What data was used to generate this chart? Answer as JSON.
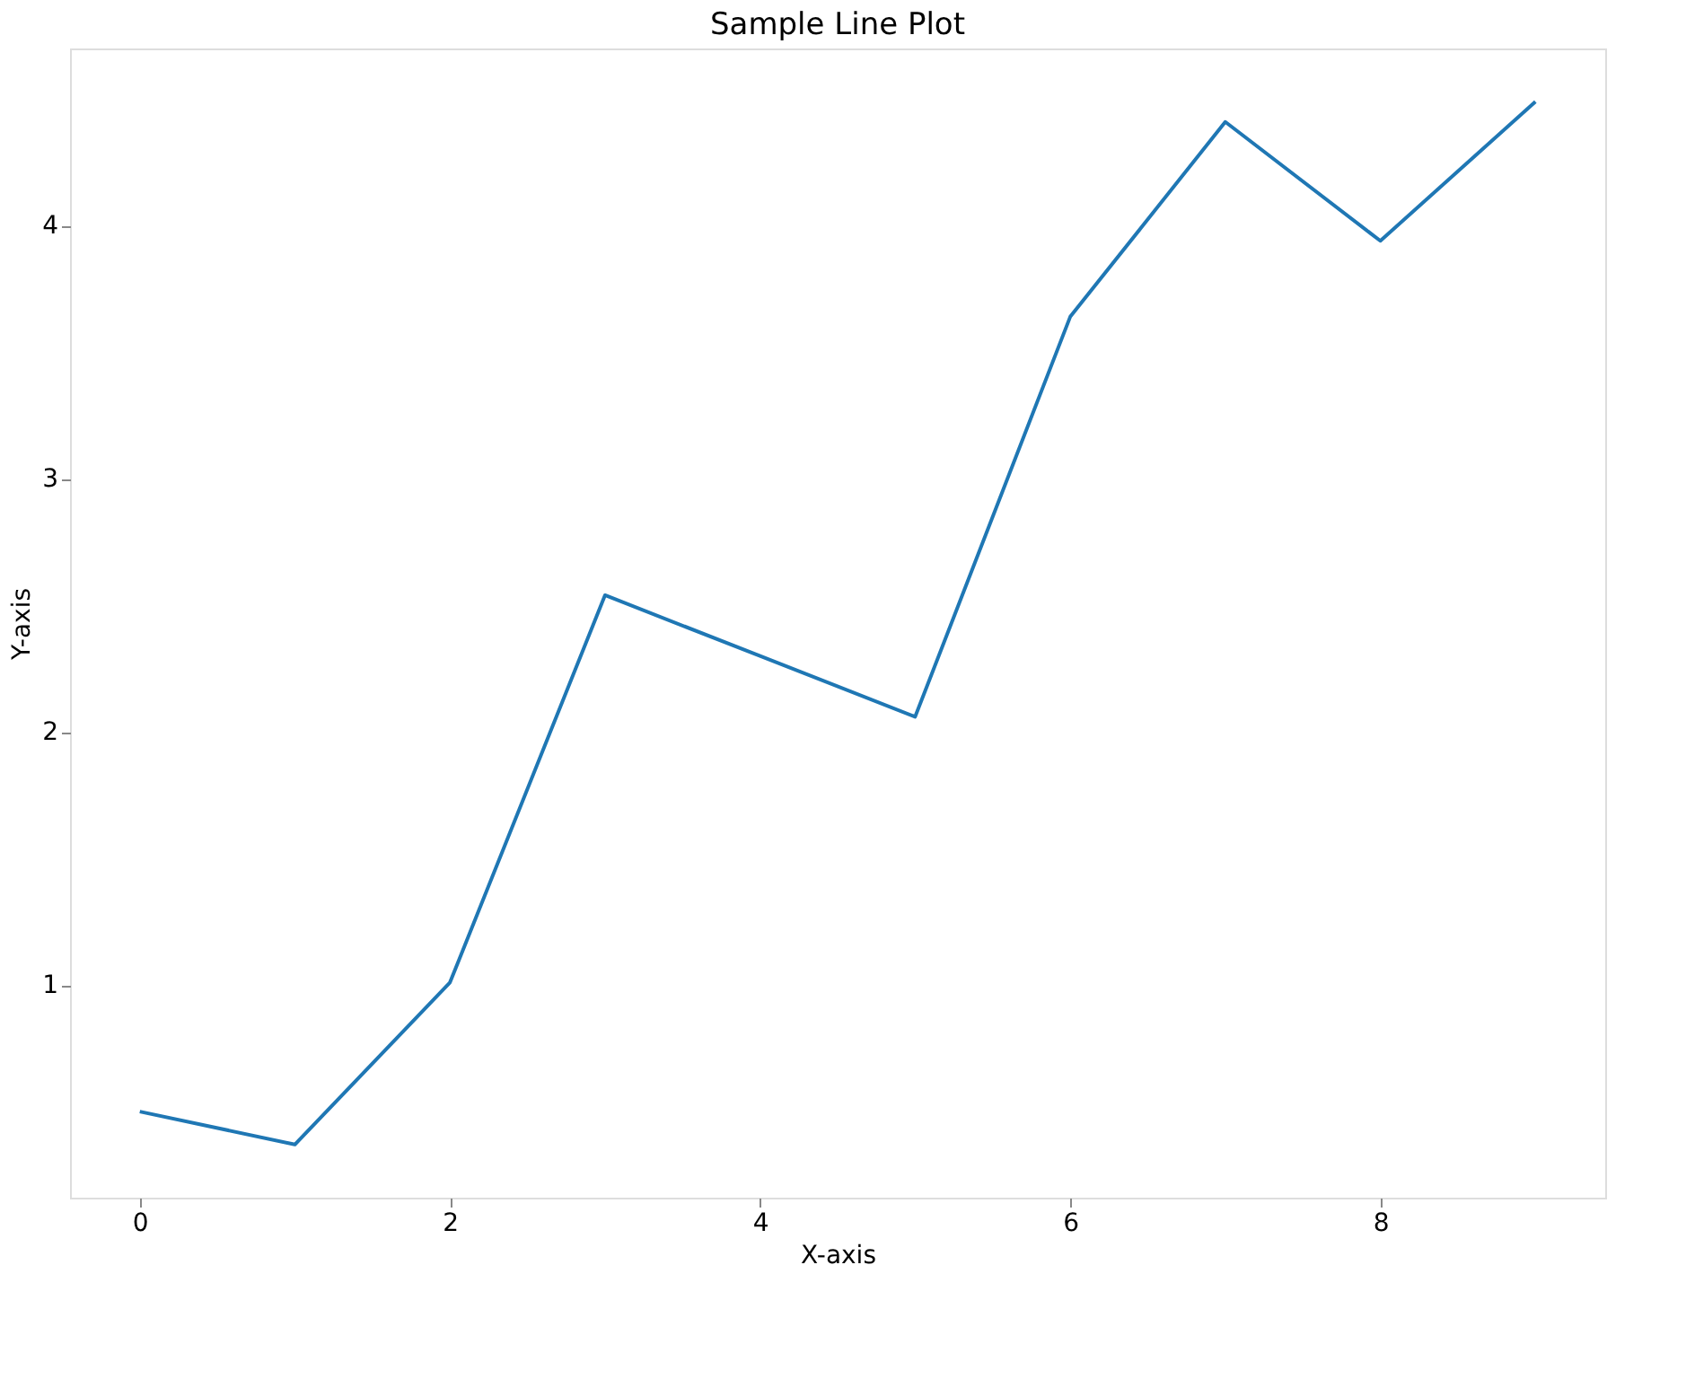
{
  "chart_data": {
    "type": "line",
    "title": "Sample Line Plot",
    "xlabel": "X-axis",
    "ylabel": "Y-axis",
    "x": [
      0,
      1,
      2,
      3,
      4,
      5,
      6,
      7,
      8,
      9
    ],
    "series": [
      {
        "color": "#1f77b4",
        "values": [
          0.5,
          0.37,
          1.01,
          2.54,
          2.3,
          2.06,
          3.64,
          4.41,
          3.94,
          4.49
        ]
      }
    ],
    "xlim": [
      -0.45,
      9.45
    ],
    "ylim": [
      0.16,
      4.7
    ],
    "xticks": [
      0,
      2,
      4,
      6,
      8
    ],
    "yticks": [
      1,
      2,
      3,
      4
    ],
    "grid": false,
    "legend": false,
    "marker": "none",
    "line_style": "solid"
  }
}
